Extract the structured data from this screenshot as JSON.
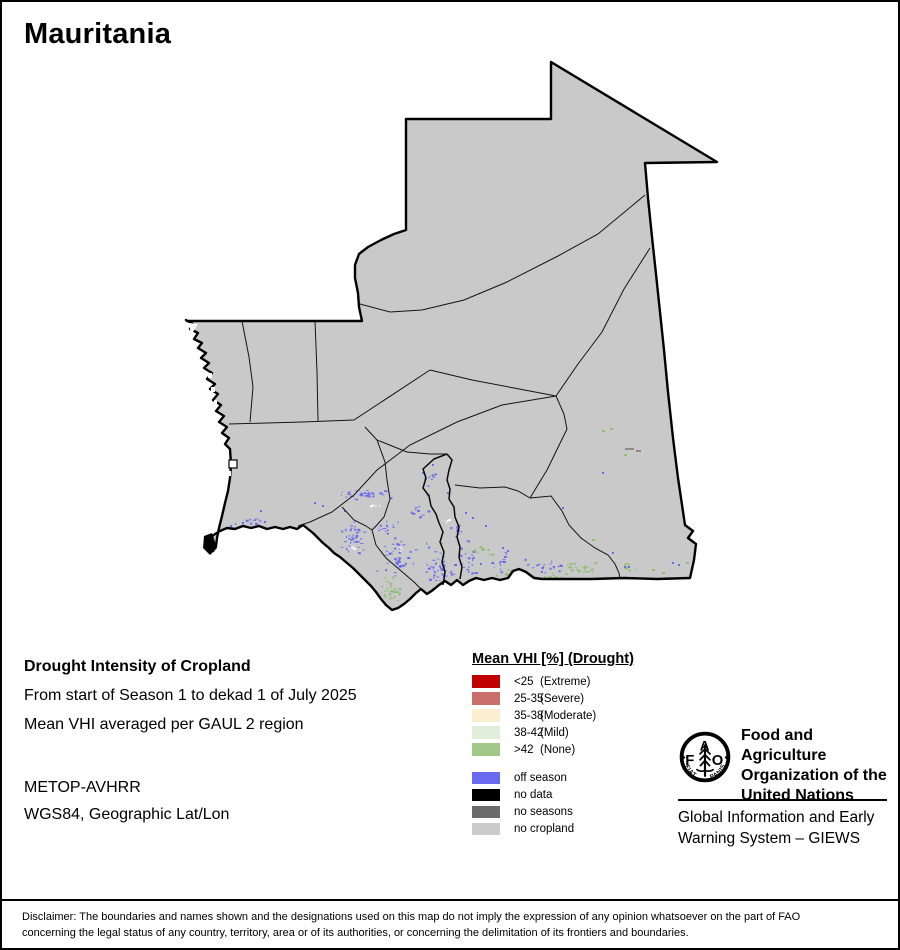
{
  "title": "Mauritania",
  "info": {
    "heading": "Drought Intensity of Cropland",
    "period": "From start of Season 1 to dekad 1 of July 2025",
    "aggregation": "Mean VHI averaged per GAUL 2 region",
    "sensor": "METOP-AVHRR",
    "projection": "WGS84, Geographic Lat/Lon"
  },
  "legend": {
    "title": "Mean VHI [%] (Drought)",
    "vhi_classes": [
      {
        "value": "<25",
        "qualifier": "(Extreme)",
        "color": "#C00000"
      },
      {
        "value": "25-35",
        "qualifier": "(Severe)",
        "color": "#C9706B"
      },
      {
        "value": "35-38",
        "qualifier": "(Moderate)",
        "color": "#FCEFD0"
      },
      {
        "value": "38-42",
        "qualifier": "(Mild)",
        "color": "#E2EEDC"
      },
      {
        "value": ">42",
        "qualifier": "(None)",
        "color": "#A1C888"
      }
    ],
    "other_classes": [
      {
        "label": "off season",
        "color": "#6A6AEF"
      },
      {
        "label": "no data",
        "color": "#000000"
      },
      {
        "label": "no seasons",
        "color": "#6B6B6B"
      },
      {
        "label": "no cropland",
        "color": "#CBCBCB"
      }
    ]
  },
  "map": {
    "country": "Mauritania",
    "no_cropland_fill": "#C9C9C9",
    "off_season_dot_color": "#6A6AEF",
    "vhi_none_dot_color": "#8CBF6F"
  },
  "organization": {
    "logo_letters": {
      "f": "F",
      "a": "A",
      "o": "O"
    },
    "logo_motto": {
      "left": "FIAT",
      "right": "PANIS"
    },
    "name_lines": [
      "Food and Agriculture",
      "Organization of the",
      "United Nations"
    ],
    "programme_lines": [
      "Global Information and Early",
      "Warning System – GIEWS"
    ]
  },
  "disclaimer": {
    "line1": "Disclaimer: The boundaries and names shown and the designations used on this map do not imply the expression of any opinion whatsoever on the part of FAO",
    "line2": "concerning the legal status of any country, territory, area or of its authorities, or concerning the delimitation of its frontiers and boundaries."
  }
}
